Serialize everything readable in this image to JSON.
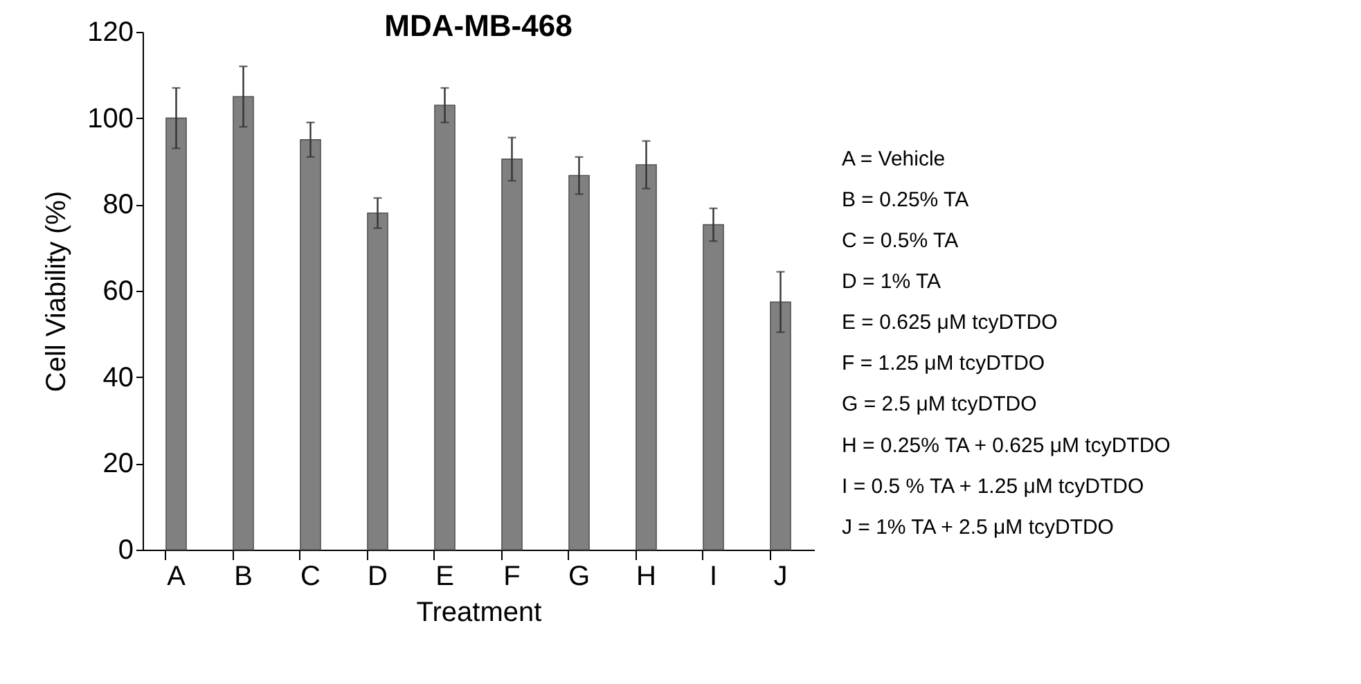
{
  "chart_data": {
    "type": "bar",
    "title": "MDA-MB-468",
    "xlabel": "Treatment",
    "ylabel": "Cell Viability (%)",
    "categories": [
      "A",
      "B",
      "C",
      "D",
      "E",
      "F",
      "G",
      "H",
      "I",
      "J"
    ],
    "values": [
      100,
      105,
      95,
      78,
      103,
      90.5,
      86.7,
      89.2,
      75.3,
      57.4
    ],
    "errors": [
      7,
      7,
      4,
      3.5,
      4,
      5,
      4.3,
      5.5,
      3.8,
      7
    ],
    "color": "#808080",
    "ylim": [
      0,
      120
    ],
    "yticks": [
      0,
      20,
      40,
      60,
      80,
      100,
      120
    ],
    "grid": false,
    "annotations": [
      "A = Vehicle",
      "B = 0.25% TA",
      "C = 0.5% TA",
      "D = 1% TA",
      "E = 0.625 μM tcyDTDO",
      "F = 1.25 μM tcyDTDO",
      "G = 2.5 μM tcyDTDO",
      "H = 0.25% TA + 0.625 μM tcyDTDO",
      "I = 0.5 % TA + 1.25 μM tcyDTDO",
      "J = 1% TA + 2.5 μM tcyDTDO"
    ]
  }
}
